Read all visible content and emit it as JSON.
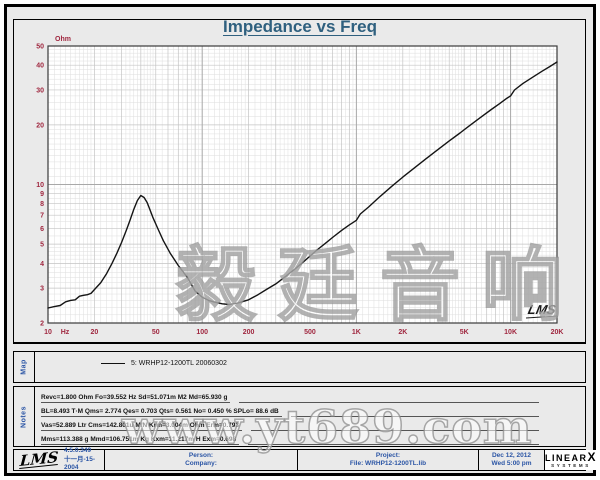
{
  "title": "Impedance vs Freq",
  "map": {
    "label": "Map",
    "legend": "5: WRHP12-1200TL 20060302"
  },
  "notes": {
    "label": "Notes",
    "lines": [
      "Revc=1.800 Ohm  Fo=39.552 Hz  Sd=51.071m M2  Md=65.930 g",
      "BL=8.493 T·M  Qms= 2.774  Qes= 0.703  Qts= 0.561  No= 0.450 %  SPLo= 88.6 dB",
      "Vas=52.889 Ltr  Cms=142.801u M/N  Krm=3.004m Ohm  Erm=0.793",
      "Mms=113.388 g  Mmd=106.751m Kg  Kxm=11.217m H  Exm=0.698"
    ]
  },
  "statusbar": {
    "lms_logo": "LMS",
    "version": "4.5.0.349",
    "version_date": "十一月-15-2004",
    "person_label": "Person:",
    "company_label": "Company:",
    "project_label": "Project:",
    "file_label": "File: WRHP12-1200TL.lib",
    "date": "Dec 12, 2012",
    "time": "Wed  5:00 pm",
    "linearx": {
      "main": "LINEAR",
      "x": "X",
      "sub": "SYSTEMS"
    }
  },
  "watermarks": {
    "cn": "毅廷音响",
    "web": "www.yt689.com"
  },
  "colors": {
    "title": "#2f607f",
    "axis_labels": "#a02840",
    "curve": "#141414",
    "panel_bg": "#eaeaea",
    "status_text": "#2b55a5"
  },
  "chart_data": {
    "type": "line",
    "title": "Impedance vs Freq",
    "xlabel": "Hz",
    "ylabel": "Ohm",
    "xscale": "log",
    "yscale": "log",
    "xlim": [
      10,
      20000
    ],
    "ylim": [
      2,
      50
    ],
    "grid": true,
    "legend_position": "map-panel-below-chart",
    "x_unit": "Hz",
    "y_unit": "Ohm",
    "x_ticks": [
      {
        "v": 10,
        "label": "10"
      },
      {
        "v": 20,
        "label": "20"
      },
      {
        "v": 50,
        "label": "50"
      },
      {
        "v": 100,
        "label": "100"
      },
      {
        "v": 200,
        "label": "200"
      },
      {
        "v": 500,
        "label": "500"
      },
      {
        "v": 1000,
        "label": "1K"
      },
      {
        "v": 2000,
        "label": "2K"
      },
      {
        "v": 5000,
        "label": "5K"
      },
      {
        "v": 10000,
        "label": "10K"
      },
      {
        "v": 20000,
        "label": "20K"
      }
    ],
    "y_ticks": [
      50,
      40,
      30,
      20,
      10,
      9,
      8,
      7,
      6,
      5,
      4,
      3,
      2
    ],
    "annotations": [
      "LMS"
    ],
    "series": [
      {
        "name": "5: WRHP12-1200TL 20060302",
        "points": [
          [
            10,
            2.38
          ],
          [
            11,
            2.42
          ],
          [
            12,
            2.45
          ],
          [
            13,
            2.56
          ],
          [
            14,
            2.6
          ],
          [
            15,
            2.62
          ],
          [
            16,
            2.73
          ],
          [
            17,
            2.76
          ],
          [
            18,
            2.78
          ],
          [
            19,
            2.82
          ],
          [
            20,
            2.95
          ],
          [
            22,
            3.2
          ],
          [
            24,
            3.55
          ],
          [
            26,
            4.0
          ],
          [
            28,
            4.5
          ],
          [
            30,
            5.1
          ],
          [
            32,
            5.8
          ],
          [
            34,
            6.6
          ],
          [
            36,
            7.5
          ],
          [
            38,
            8.3
          ],
          [
            40,
            8.8
          ],
          [
            42,
            8.6
          ],
          [
            44,
            8.1
          ],
          [
            46,
            7.4
          ],
          [
            48,
            6.8
          ],
          [
            52,
            5.9
          ],
          [
            56,
            5.2
          ],
          [
            62,
            4.5
          ],
          [
            70,
            3.9
          ],
          [
            80,
            3.4
          ],
          [
            90,
            2.9
          ],
          [
            100,
            2.7
          ],
          [
            110,
            2.6
          ],
          [
            120,
            2.55
          ],
          [
            135,
            2.5
          ],
          [
            150,
            2.48
          ],
          [
            170,
            2.52
          ],
          [
            200,
            2.62
          ],
          [
            230,
            2.78
          ],
          [
            260,
            2.95
          ],
          [
            300,
            3.15
          ],
          [
            350,
            3.45
          ],
          [
            400,
            3.75
          ],
          [
            450,
            4.05
          ],
          [
            500,
            4.35
          ],
          [
            560,
            4.7
          ],
          [
            630,
            5.05
          ],
          [
            700,
            5.4
          ],
          [
            800,
            5.85
          ],
          [
            900,
            6.25
          ],
          [
            1000,
            6.6
          ],
          [
            1060,
            7.1
          ],
          [
            1200,
            7.7
          ],
          [
            1400,
            8.6
          ],
          [
            1700,
            9.8
          ],
          [
            2000,
            10.9
          ],
          [
            2400,
            12.2
          ],
          [
            2800,
            13.4
          ],
          [
            3300,
            14.8
          ],
          [
            4000,
            16.6
          ],
          [
            4700,
            18.2
          ],
          [
            5500,
            20.0
          ],
          [
            6500,
            22.0
          ],
          [
            7500,
            23.9
          ],
          [
            8500,
            25.6
          ],
          [
            9500,
            27.3
          ],
          [
            10000,
            28.0
          ],
          [
            10600,
            30.0
          ],
          [
            12000,
            32.3
          ],
          [
            14000,
            34.9
          ],
          [
            16000,
            37.3
          ],
          [
            18000,
            39.4
          ],
          [
            20000,
            41.5
          ]
        ]
      }
    ]
  }
}
